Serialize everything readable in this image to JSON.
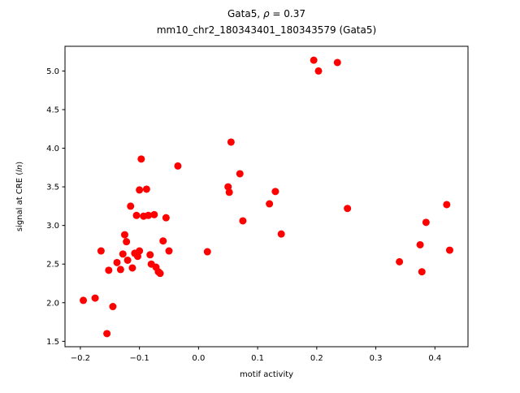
{
  "chart_data": {
    "type": "scatter",
    "title": "Gata5, ρ = 0.37",
    "title_parts": {
      "pre": "Gata5, ",
      "italic": "ρ",
      "post": " = 0.37"
    },
    "subtitle": "mm10_chr2_180343401_180343579 (Gata5)",
    "xlabel": "motif activity",
    "ylabel": "signal at CRE (ln)",
    "ylabel_parts": {
      "pre": "signal at CRE (",
      "italic": "ln",
      "post": ")"
    },
    "xlim": [
      -0.226,
      0.456
    ],
    "ylim": [
      1.43,
      5.32
    ],
    "xticks": [
      -0.2,
      -0.1,
      0.0,
      0.1,
      0.2,
      0.3,
      0.4
    ],
    "yticks": [
      1.5,
      2.0,
      2.5,
      3.0,
      3.5,
      4.0,
      4.5,
      5.0
    ],
    "grid": false,
    "legend": null,
    "marker_color": "#ff0000",
    "marker_radius": 4.5,
    "points": [
      [
        -0.195,
        2.03
      ],
      [
        -0.175,
        2.06
      ],
      [
        -0.165,
        2.67
      ],
      [
        -0.155,
        1.6
      ],
      [
        -0.152,
        2.42
      ],
      [
        -0.145,
        1.95
      ],
      [
        -0.138,
        2.52
      ],
      [
        -0.132,
        2.43
      ],
      [
        -0.128,
        2.63
      ],
      [
        -0.125,
        2.88
      ],
      [
        -0.122,
        2.79
      ],
      [
        -0.12,
        2.55
      ],
      [
        -0.115,
        3.25
      ],
      [
        -0.112,
        2.45
      ],
      [
        -0.108,
        2.64
      ],
      [
        -0.105,
        3.13
      ],
      [
        -0.103,
        2.6
      ],
      [
        -0.1,
        3.46
      ],
      [
        -0.1,
        2.67
      ],
      [
        -0.097,
        3.86
      ],
      [
        -0.093,
        3.12
      ],
      [
        -0.088,
        3.47
      ],
      [
        -0.085,
        3.13
      ],
      [
        -0.082,
        2.62
      ],
      [
        -0.08,
        2.5
      ],
      [
        -0.075,
        3.14
      ],
      [
        -0.072,
        2.46
      ],
      [
        -0.068,
        2.4
      ],
      [
        -0.065,
        2.38
      ],
      [
        -0.06,
        2.8
      ],
      [
        -0.055,
        3.1
      ],
      [
        -0.05,
        2.67
      ],
      [
        -0.035,
        3.77
      ],
      [
        0.015,
        2.66
      ],
      [
        0.05,
        3.5
      ],
      [
        0.052,
        3.43
      ],
      [
        0.055,
        4.08
      ],
      [
        0.07,
        3.67
      ],
      [
        0.075,
        3.06
      ],
      [
        0.12,
        3.28
      ],
      [
        0.13,
        3.44
      ],
      [
        0.14,
        2.89
      ],
      [
        0.195,
        5.14
      ],
      [
        0.203,
        5.0
      ],
      [
        0.235,
        5.11
      ],
      [
        0.252,
        3.22
      ],
      [
        0.34,
        2.53
      ],
      [
        0.375,
        2.75
      ],
      [
        0.378,
        2.4
      ],
      [
        0.385,
        3.04
      ],
      [
        0.42,
        3.27
      ],
      [
        0.425,
        2.68
      ]
    ]
  }
}
